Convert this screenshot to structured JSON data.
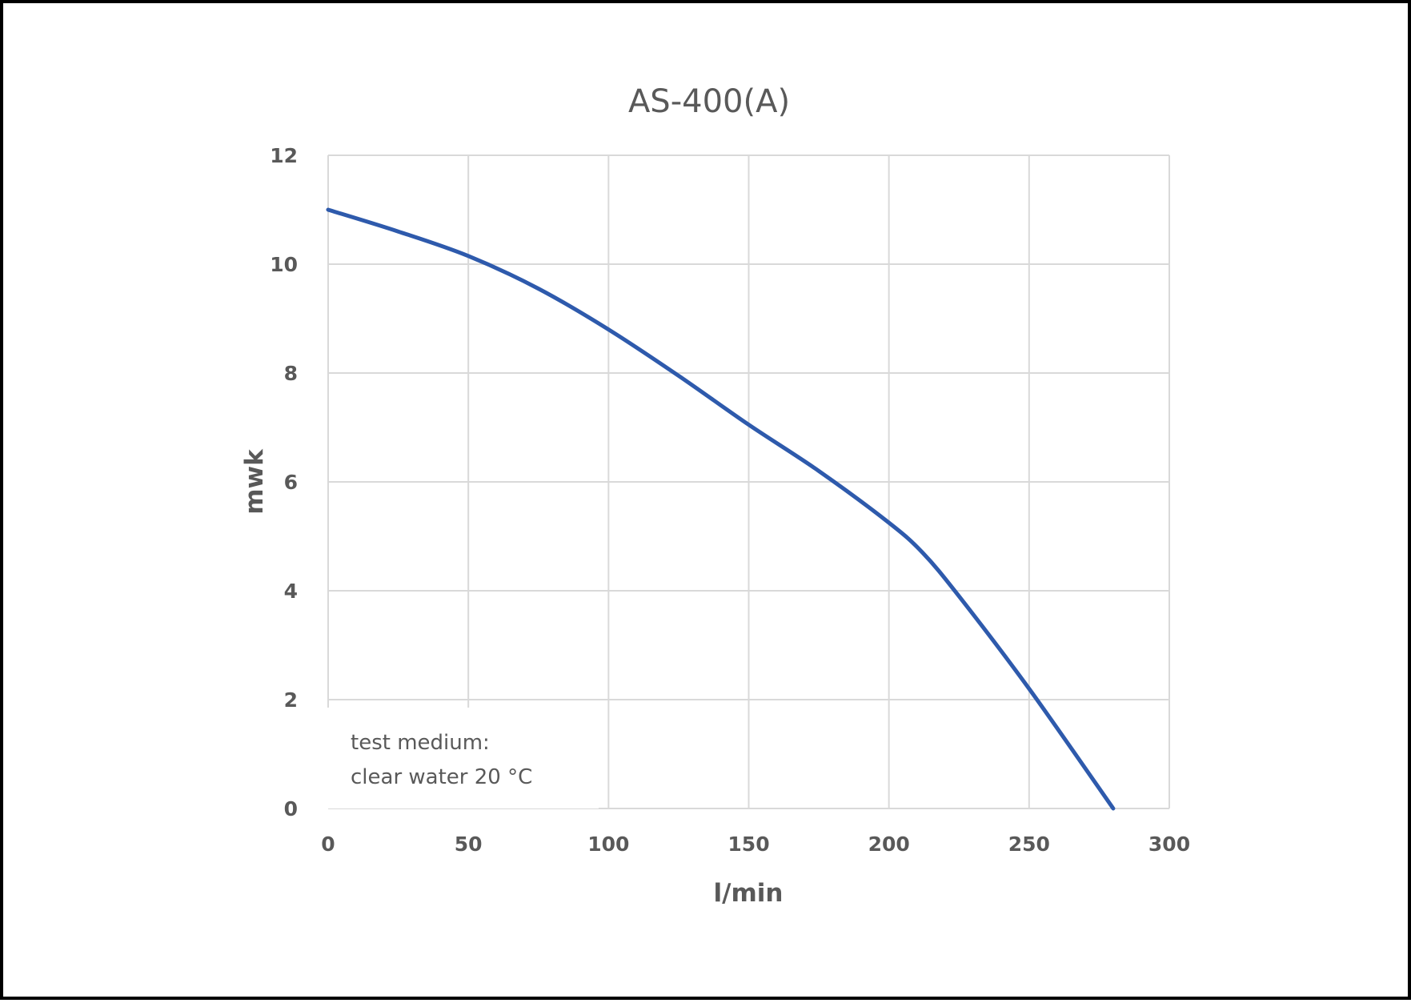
{
  "chart_data": {
    "type": "line",
    "title": "AS-400(A)",
    "xlabel": "l/min",
    "ylabel": "mwk",
    "xlim": [
      0,
      300
    ],
    "ylim": [
      0,
      12
    ],
    "xticks": [
      "0",
      "50",
      "100",
      "150",
      "200",
      "250",
      "300"
    ],
    "yticks": [
      "0",
      "2",
      "4",
      "6",
      "8",
      "10",
      "12"
    ],
    "grid": true,
    "annotation": [
      "test medium:",
      "clear water 20 °C"
    ],
    "series": [
      {
        "color": "#2E5AAC",
        "x": [
          0,
          25,
          50,
          75,
          100,
          125,
          150,
          175,
          200,
          212,
          225,
          250,
          280
        ],
        "y": [
          11.0,
          10.6,
          10.15,
          9.55,
          8.8,
          7.95,
          7.05,
          6.2,
          5.25,
          4.7,
          3.9,
          2.2,
          0
        ]
      }
    ]
  }
}
